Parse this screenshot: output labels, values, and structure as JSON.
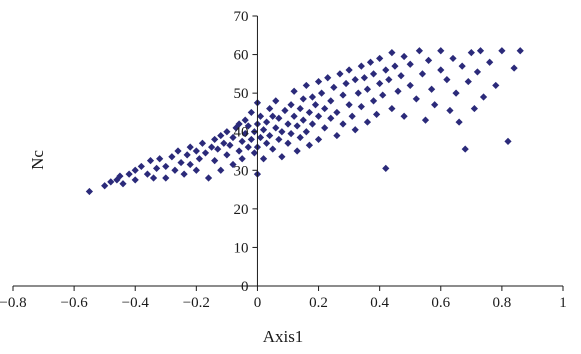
{
  "chart_data": {
    "type": "scatter",
    "title": "",
    "xlabel": "Axis1",
    "ylabel": "Nc",
    "xlim": [
      -0.8,
      1
    ],
    "ylim": [
      0,
      70
    ],
    "x_ticks": [
      -0.8,
      -0.6,
      -0.4,
      -0.2,
      0,
      0.2,
      0.4,
      0.6,
      0.8,
      1
    ],
    "x_tick_labels": [
      "−0.8",
      "−0.6",
      "−0.4",
      "−0.2",
      "0",
      "0.2",
      "0.4",
      "0.6",
      "0.8",
      "1"
    ],
    "y_ticks": [
      0,
      10,
      20,
      30,
      40,
      50,
      60,
      70
    ],
    "y_tick_labels": [
      "0",
      "10",
      "20",
      "30",
      "40",
      "50",
      "60",
      "70"
    ],
    "grid": false,
    "legend": "none",
    "marker": "diamond",
    "marker_color": "#2b2a7a",
    "series": [
      {
        "points": [
          [
            -0.55,
            24.5
          ],
          [
            -0.5,
            26
          ],
          [
            -0.48,
            27
          ],
          [
            -0.46,
            27.5
          ],
          [
            -0.45,
            28.5
          ],
          [
            -0.44,
            26.5
          ],
          [
            -0.42,
            29
          ],
          [
            -0.4,
            30
          ],
          [
            -0.4,
            27.5
          ],
          [
            -0.38,
            31
          ],
          [
            -0.36,
            29
          ],
          [
            -0.35,
            32.5
          ],
          [
            -0.34,
            28
          ],
          [
            -0.33,
            30.5
          ],
          [
            -0.32,
            33
          ],
          [
            -0.3,
            31
          ],
          [
            -0.3,
            28
          ],
          [
            -0.28,
            33.5
          ],
          [
            -0.27,
            30
          ],
          [
            -0.26,
            35
          ],
          [
            -0.25,
            32
          ],
          [
            -0.24,
            29
          ],
          [
            -0.23,
            34
          ],
          [
            -0.22,
            36
          ],
          [
            -0.22,
            31.5
          ],
          [
            -0.2,
            35
          ],
          [
            -0.2,
            30
          ],
          [
            -0.19,
            33
          ],
          [
            -0.18,
            37
          ],
          [
            -0.17,
            34.5
          ],
          [
            -0.16,
            28
          ],
          [
            -0.15,
            36
          ],
          [
            -0.14,
            38
          ],
          [
            -0.14,
            32.5
          ],
          [
            -0.13,
            35.5
          ],
          [
            -0.12,
            39
          ],
          [
            -0.12,
            30
          ],
          [
            -0.11,
            37
          ],
          [
            -0.1,
            40
          ],
          [
            -0.1,
            34
          ],
          [
            -0.09,
            36.5
          ],
          [
            -0.08,
            38.5
          ],
          [
            -0.08,
            31.5
          ],
          [
            -0.07,
            41
          ],
          [
            -0.06,
            35
          ],
          [
            -0.06,
            42
          ],
          [
            -0.05,
            37.5
          ],
          [
            -0.05,
            33
          ],
          [
            -0.04,
            39.5
          ],
          [
            -0.04,
            43
          ],
          [
            -0.03,
            36
          ],
          [
            -0.03,
            41.5
          ],
          [
            -0.02,
            38
          ],
          [
            -0.02,
            45
          ],
          [
            -0.01,
            34.5
          ],
          [
            -0.01,
            40
          ],
          [
            0.0,
            36
          ],
          [
            0.0,
            42
          ],
          [
            0.0,
            47.5
          ],
          [
            0.0,
            29
          ],
          [
            0.01,
            38.5
          ],
          [
            0.01,
            44
          ],
          [
            0.02,
            40.5
          ],
          [
            0.02,
            33
          ],
          [
            0.03,
            42.5
          ],
          [
            0.03,
            37
          ],
          [
            0.04,
            46
          ],
          [
            0.04,
            39
          ],
          [
            0.05,
            44
          ],
          [
            0.05,
            35.5
          ],
          [
            0.06,
            41
          ],
          [
            0.06,
            48
          ],
          [
            0.07,
            38
          ],
          [
            0.07,
            43.5
          ],
          [
            0.08,
            40
          ],
          [
            0.08,
            33.5
          ],
          [
            0.09,
            45.5
          ],
          [
            0.1,
            42
          ],
          [
            0.1,
            37
          ],
          [
            0.11,
            47
          ],
          [
            0.11,
            39.5
          ],
          [
            0.12,
            44
          ],
          [
            0.12,
            50.5
          ],
          [
            0.13,
            41.5
          ],
          [
            0.13,
            35
          ],
          [
            0.14,
            46
          ],
          [
            0.14,
            38.5
          ],
          [
            0.15,
            48.5
          ],
          [
            0.15,
            43
          ],
          [
            0.16,
            40
          ],
          [
            0.16,
            52
          ],
          [
            0.17,
            45
          ],
          [
            0.17,
            36.5
          ],
          [
            0.18,
            49
          ],
          [
            0.18,
            42
          ],
          [
            0.19,
            47
          ],
          [
            0.2,
            44
          ],
          [
            0.2,
            53
          ],
          [
            0.2,
            38
          ],
          [
            0.21,
            50
          ],
          [
            0.22,
            46
          ],
          [
            0.22,
            41
          ],
          [
            0.23,
            54
          ],
          [
            0.24,
            48
          ],
          [
            0.24,
            43.5
          ],
          [
            0.25,
            51.5
          ],
          [
            0.26,
            45
          ],
          [
            0.26,
            39
          ],
          [
            0.27,
            55
          ],
          [
            0.28,
            49.5
          ],
          [
            0.28,
            42
          ],
          [
            0.29,
            52.5
          ],
          [
            0.3,
            47
          ],
          [
            0.3,
            56
          ],
          [
            0.31,
            44
          ],
          [
            0.32,
            53.5
          ],
          [
            0.32,
            40.5
          ],
          [
            0.33,
            50
          ],
          [
            0.34,
            57
          ],
          [
            0.34,
            46.5
          ],
          [
            0.35,
            54
          ],
          [
            0.36,
            42.5
          ],
          [
            0.36,
            51
          ],
          [
            0.37,
            58
          ],
          [
            0.38,
            48
          ],
          [
            0.38,
            55
          ],
          [
            0.39,
            44.5
          ],
          [
            0.4,
            52.5
          ],
          [
            0.4,
            59
          ],
          [
            0.41,
            49.5
          ],
          [
            0.42,
            56
          ],
          [
            0.42,
            30.5
          ],
          [
            0.43,
            53.5
          ],
          [
            0.44,
            60.5
          ],
          [
            0.44,
            46
          ],
          [
            0.45,
            57
          ],
          [
            0.46,
            50.5
          ],
          [
            0.47,
            54.5
          ],
          [
            0.48,
            44
          ],
          [
            0.48,
            59.5
          ],
          [
            0.5,
            52
          ],
          [
            0.5,
            57.5
          ],
          [
            0.52,
            48.5
          ],
          [
            0.53,
            61
          ],
          [
            0.54,
            55
          ],
          [
            0.55,
            43
          ],
          [
            0.56,
            58.5
          ],
          [
            0.57,
            51
          ],
          [
            0.58,
            47
          ],
          [
            0.6,
            56
          ],
          [
            0.6,
            61
          ],
          [
            0.62,
            53.5
          ],
          [
            0.63,
            45.5
          ],
          [
            0.64,
            59
          ],
          [
            0.65,
            50
          ],
          [
            0.66,
            42.5
          ],
          [
            0.67,
            57
          ],
          [
            0.68,
            35.5
          ],
          [
            0.69,
            53
          ],
          [
            0.7,
            60.5
          ],
          [
            0.71,
            46
          ],
          [
            0.72,
            55.5
          ],
          [
            0.73,
            61
          ],
          [
            0.74,
            49
          ],
          [
            0.76,
            58
          ],
          [
            0.78,
            52
          ],
          [
            0.8,
            61
          ],
          [
            0.82,
            37.5
          ],
          [
            0.84,
            56.5
          ],
          [
            0.86,
            61
          ]
        ]
      }
    ]
  }
}
